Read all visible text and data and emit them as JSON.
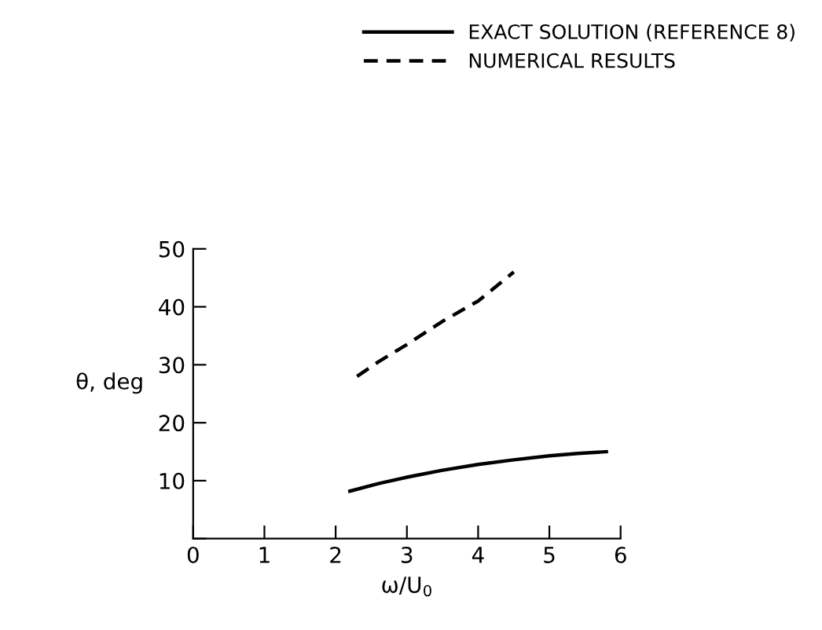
{
  "chart_data": {
    "type": "line",
    "xlabel": "ω/U$_{0}$",
    "ylabel": "θ, deg",
    "xlim": [
      0,
      6
    ],
    "ylim": [
      0,
      50
    ],
    "xticks": [
      0,
      1,
      2,
      3,
      4,
      5,
      6
    ],
    "yticks": [
      {
        "value": 0,
        "label": null
      },
      10,
      20,
      30,
      40,
      50
    ],
    "grid": false,
    "legend": "top right",
    "series": [
      {
        "name": "EXACT SOLUTION (REFERENCE 8)",
        "color": "#000000",
        "line_style": "solid",
        "x": [
          2.2,
          2.6,
          3.0,
          3.5,
          4.0,
          4.5,
          5.0,
          5.4,
          5.8
        ],
        "values": [
          8.2,
          9.5,
          10.6,
          11.8,
          12.8,
          13.6,
          14.3,
          14.7,
          15.0
        ]
      },
      {
        "name": "NUMERICAL RESULTS",
        "color": "#000000",
        "line_style": "dashed",
        "x": [
          2.3,
          2.6,
          3.0,
          3.5,
          4.0,
          4.5
        ],
        "values": [
          28.0,
          30.5,
          33.5,
          37.5,
          41.0,
          46.0
        ]
      }
    ]
  }
}
